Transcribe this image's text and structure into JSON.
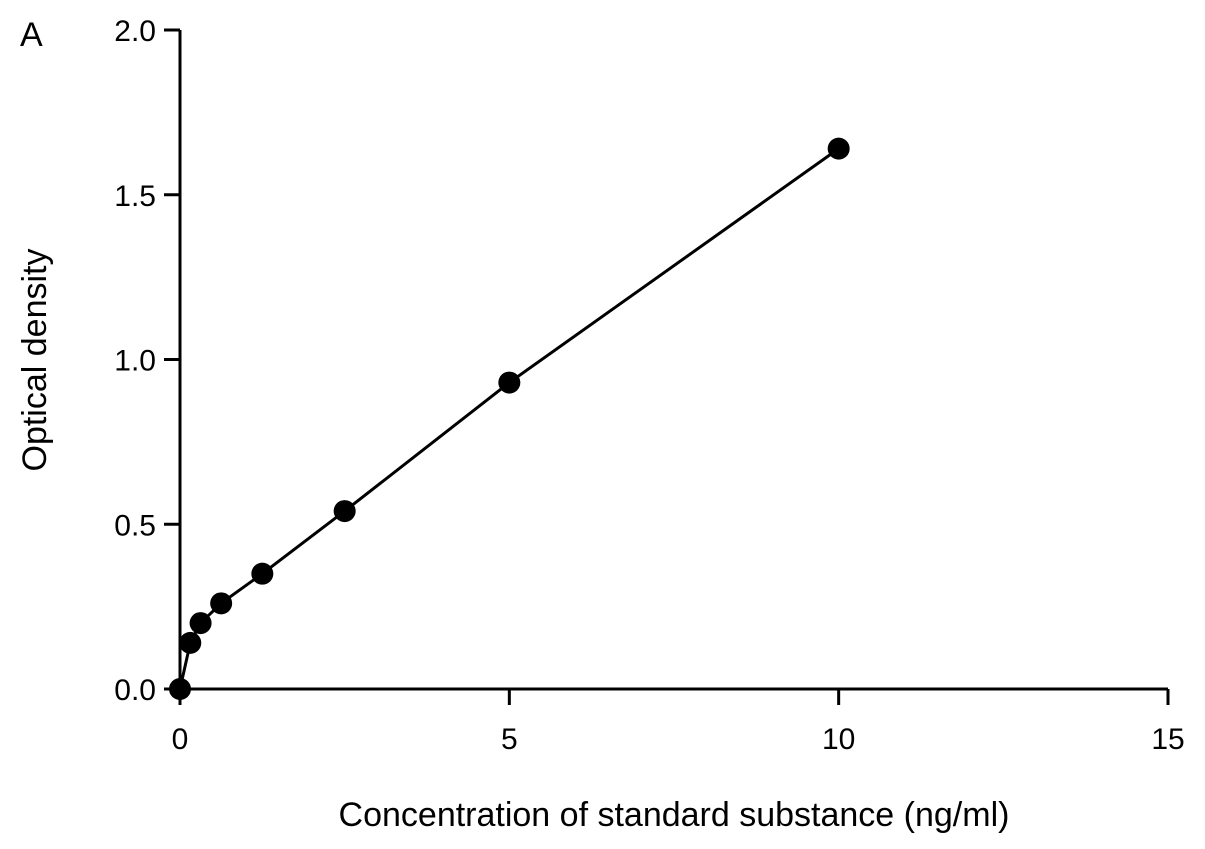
{
  "panel_label": "A",
  "chart_data": {
    "type": "line",
    "title": "",
    "xlabel": "Concentration of standard substance (ng/ml)",
    "ylabel": "Optical density",
    "xlim": [
      0,
      15
    ],
    "ylim": [
      0,
      2.0
    ],
    "xticks": [
      0,
      5,
      10,
      15
    ],
    "xtick_labels": [
      "0",
      "5",
      "10",
      "15"
    ],
    "yticks": [
      0,
      0.5,
      1.0,
      1.5,
      2.0
    ],
    "ytick_labels": [
      "0.0",
      "0.5",
      "1.0",
      "1.5",
      "2.0"
    ],
    "grid": false,
    "series": [
      {
        "x": [
          0,
          0.156,
          0.3125,
          0.625,
          1.25,
          2.5,
          5,
          10
        ],
        "y": [
          0.0,
          0.14,
          0.2,
          0.26,
          0.35,
          0.54,
          0.93,
          1.64
        ],
        "color": "#000000",
        "marker": "filled-circle"
      }
    ]
  }
}
